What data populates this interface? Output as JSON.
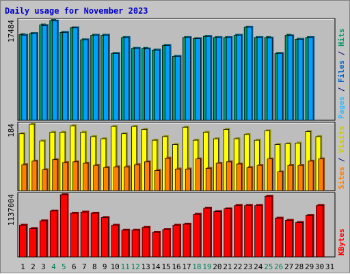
{
  "chart_data": {
    "type": "bar",
    "title": "Daily usage for November 2023",
    "days": [
      "1",
      "2",
      "3",
      "4",
      "5",
      "6",
      "7",
      "8",
      "9",
      "10",
      "11",
      "12",
      "13",
      "14",
      "15",
      "16",
      "17",
      "18",
      "19",
      "20",
      "21",
      "22",
      "23",
      "24",
      "25",
      "26",
      "27",
      "28",
      "29",
      "30",
      "31"
    ],
    "weekend_days": [
      "4",
      "5",
      "11",
      "12",
      "18",
      "19",
      "25",
      "26"
    ],
    "panels": [
      {
        "id": "hits",
        "max_label": "17484",
        "ymax": 17484,
        "legend": [
          {
            "text": "Pages",
            "color": "#33bbff"
          },
          {
            "text": " / ",
            "color": "#000080"
          },
          {
            "text": "Files",
            "color": "#0066cc"
          },
          {
            "text": " / ",
            "color": "#000080"
          },
          {
            "text": "Hits",
            "color": "#009966"
          }
        ],
        "series": [
          {
            "name": "Hits",
            "color": "#009966",
            "values": [
              15000,
              15200,
              16700,
              17484,
              15400,
              16200,
              14100,
              14900,
              14900,
              11700,
              14500,
              12600,
              12600,
              12300,
              13100,
              11200,
              14500,
              14300,
              14700,
              14500,
              14500,
              14900,
              16300,
              14500,
              14500,
              11700,
              14900,
              14200,
              14500,
              null,
              null
            ]
          },
          {
            "name": "Files",
            "color": "#00a0ff",
            "values": [
              14900,
              15200,
              16600,
              17400,
              15400,
              16200,
              14100,
              14900,
              14900,
              11700,
              14500,
              12600,
              12500,
              12300,
              13100,
              11200,
              14500,
              14300,
              14700,
              14500,
              14500,
              14900,
              16300,
              14500,
              14400,
              11700,
              14800,
              14200,
              14500,
              null,
              null
            ]
          }
        ]
      },
      {
        "id": "visits",
        "max_label": "184",
        "ymax": 184,
        "legend": [
          {
            "text": "Sites",
            "color": "#ff8000"
          },
          {
            "text": " / ",
            "color": "#000080"
          },
          {
            "text": "Visits",
            "color": "#cccc00"
          }
        ],
        "series": [
          {
            "name": "Visits",
            "color": "#ffff00",
            "values": [
              158,
              184,
              138,
              162,
              162,
              180,
              162,
              150,
              144,
              178,
              158,
              178,
              170,
              140,
              150,
              128,
              176,
              140,
              162,
              144,
              170,
              144,
              156,
              140,
              166,
              128,
              130,
              132,
              164,
              150,
              null
            ]
          },
          {
            "name": "Sites",
            "color": "#ff8000",
            "values": [
              72,
              82,
              58,
              86,
              78,
              80,
              76,
              70,
              64,
              66,
              66,
              72,
              80,
              56,
              90,
              60,
              60,
              88,
              62,
              76,
              80,
              74,
              64,
              70,
              88,
              52,
              70,
              70,
              82,
              88,
              null
            ]
          }
        ]
      },
      {
        "id": "kbytes",
        "max_label": "1137004",
        "ymax": 1137004,
        "legend": [
          {
            "text": "KBytes",
            "color": "#ff0000"
          }
        ],
        "series": [
          {
            "name": "KBytes",
            "color": "#ff0000",
            "values": [
              580000,
              520000,
              660000,
              840000,
              1137004,
              800000,
              820000,
              800000,
              720000,
              580000,
              490000,
              490000,
              540000,
              450000,
              500000,
              580000,
              600000,
              780000,
              890000,
              830000,
              880000,
              940000,
              940000,
              940000,
              1110000,
              710000,
              670000,
              630000,
              760000,
              940000,
              null
            ]
          }
        ]
      }
    ]
  }
}
